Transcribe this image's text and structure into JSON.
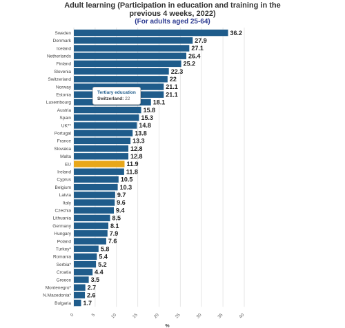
{
  "title": {
    "line1": "Adult learning (Participation in education and training in the",
    "line2": "previous 4 weeks, 2022)",
    "subtitle": "(For adults aged 25-64)"
  },
  "tooltip": {
    "title": "Tertiary education",
    "series": "Switzerland:",
    "value": "22"
  },
  "colors": {
    "bar": "#1f5c8b",
    "highlight": "#e8a71a",
    "grid": "#e6e6e6"
  },
  "chart_data": {
    "type": "bar",
    "orientation": "horizontal",
    "title": "Adult learning (Participation in education and training in the previous 4 weeks, 2022)",
    "subtitle": "(For adults aged 25-64)",
    "xlabel": "%",
    "ylabel": "",
    "xlim": [
      0,
      40
    ],
    "xticks": [
      "0",
      "5",
      "10",
      "15",
      "20",
      "25",
      "30",
      "35",
      "40"
    ],
    "grid": true,
    "highlight_category": "EU",
    "categories": [
      "Sweden",
      "Denmark",
      "Iceland",
      "Netherlands",
      "Finland",
      "Slovenia",
      "Switzerland",
      "Norway",
      "Estonia",
      "Luxembourg",
      "Austria",
      "Spain",
      "UK**",
      "Portugal",
      "France",
      "Slovakia",
      "Malta",
      "EU",
      "Ireland",
      "Cyprus",
      "Belgium",
      "Latvia",
      "Italy",
      "Czechia",
      "Lithuania",
      "Germany",
      "Hungary",
      "Poland",
      "Turkey*",
      "Romania",
      "Serbia*",
      "Croatia",
      "Greece",
      "Montenegro*",
      "N.Macedonia*",
      "Bulgaria"
    ],
    "values": [
      36.2,
      27.9,
      27.1,
      26.4,
      25.2,
      22.3,
      22,
      21.1,
      21.1,
      18.1,
      15.8,
      15.3,
      14.8,
      13.8,
      13.3,
      12.8,
      12.8,
      11.9,
      11.8,
      10.5,
      10.3,
      9.7,
      9.6,
      9.4,
      8.5,
      8.1,
      7.9,
      7.6,
      5.8,
      5.4,
      5.2,
      4.4,
      3.5,
      2.7,
      2.6,
      1.7
    ]
  }
}
